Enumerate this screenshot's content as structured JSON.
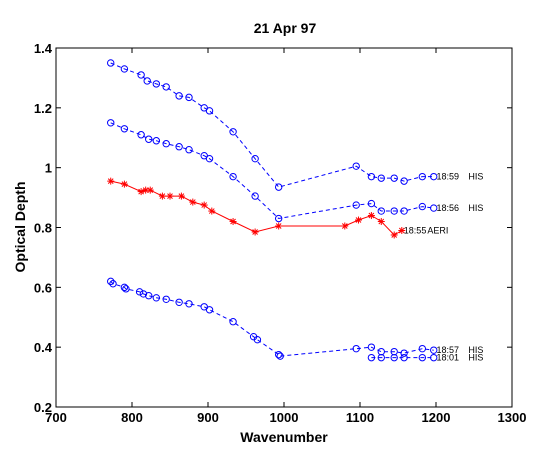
{
  "chart_data": {
    "type": "line",
    "title": "21 Apr 97",
    "xlabel": "Wavenumber",
    "ylabel": "Optical Depth",
    "xlim": [
      700,
      1300
    ],
    "ylim": [
      0.2,
      1.4
    ],
    "xticks": [
      700,
      800,
      900,
      1000,
      1100,
      1200,
      1300
    ],
    "yticks": [
      0.2,
      0.4,
      0.6,
      0.8,
      1.0,
      1.2,
      1.4
    ],
    "xtick_labels": [
      "700",
      "800",
      "900",
      "1000",
      "1100",
      "1200",
      "1300"
    ],
    "ytick_labels": [
      "0.2",
      "0.4",
      "0.6",
      "0.8",
      "1",
      "1.2",
      "1.4"
    ],
    "grid": false,
    "legend": "none",
    "series": [
      {
        "color": "#0000ff",
        "marker": "circle",
        "linestyle": "dashed",
        "x": [
          772,
          790,
          812,
          820,
          832,
          845,
          862,
          875,
          895,
          902,
          933,
          962,
          993,
          1095,
          1115,
          1128,
          1145,
          1158,
          1182,
          1197
        ],
        "y": [
          1.35,
          1.33,
          1.31,
          1.29,
          1.28,
          1.27,
          1.24,
          1.235,
          1.2,
          1.19,
          1.12,
          1.03,
          0.935,
          1.005,
          0.97,
          0.965,
          0.965,
          0.955,
          0.97,
          0.97
        ]
      },
      {
        "color": "#0000ff",
        "marker": "circle",
        "linestyle": "dashed",
        "x": [
          772,
          790,
          812,
          822,
          832,
          845,
          862,
          875,
          895,
          902,
          933,
          962,
          993,
          1095,
          1115,
          1128,
          1145,
          1158,
          1182,
          1197
        ],
        "y": [
          1.15,
          1.13,
          1.11,
          1.095,
          1.09,
          1.08,
          1.07,
          1.06,
          1.04,
          1.03,
          0.97,
          0.905,
          0.83,
          0.875,
          0.88,
          0.855,
          0.855,
          0.855,
          0.87,
          0.865
        ]
      },
      {
        "color": "#ff0000",
        "marker": "star",
        "linestyle": "solid",
        "x": [
          772,
          790,
          812,
          818,
          824,
          840,
          850,
          865,
          880,
          895,
          905,
          933,
          962,
          993,
          1080,
          1098,
          1115,
          1128,
          1145,
          1155
        ],
        "y": [
          0.955,
          0.945,
          0.92,
          0.925,
          0.925,
          0.905,
          0.905,
          0.905,
          0.885,
          0.875,
          0.855,
          0.82,
          0.785,
          0.805,
          0.805,
          0.825,
          0.84,
          0.82,
          0.775,
          0.79
        ]
      },
      {
        "color": "#0000ff",
        "marker": "circle",
        "linestyle": "dashed",
        "x": [
          772,
          775,
          790,
          792,
          810,
          815,
          822,
          832,
          845,
          862,
          875,
          895,
          902,
          933,
          960,
          965,
          993,
          995,
          1095,
          1115,
          1128,
          1145,
          1158,
          1182,
          1197
        ],
        "y": [
          0.62,
          0.612,
          0.6,
          0.595,
          0.585,
          0.578,
          0.572,
          0.565,
          0.56,
          0.55,
          0.545,
          0.535,
          0.525,
          0.485,
          0.435,
          0.425,
          0.375,
          0.37,
          0.395,
          0.4,
          0.385,
          0.385,
          0.38,
          0.395,
          0.39
        ]
      },
      {
        "color": "#0000ff",
        "marker": "circle",
        "linestyle": "dashed",
        "x": [
          1115,
          1128,
          1145,
          1158,
          1182,
          1197
        ],
        "y": [
          0.365,
          0.365,
          0.365,
          0.365,
          0.365,
          0.365
        ]
      }
    ],
    "annotations": [
      {
        "text": "18:59",
        "x": 1198,
        "y": 0.97
      },
      {
        "text": "HIS",
        "x": 1240,
        "y": 0.97
      },
      {
        "text": "18:56",
        "x": 1198,
        "y": 0.865
      },
      {
        "text": "HIS",
        "x": 1240,
        "y": 0.865
      },
      {
        "text": "18:55",
        "x": 1155,
        "y": 0.79
      },
      {
        "text": "AERI",
        "x": 1186,
        "y": 0.79
      },
      {
        "text": "18:57",
        "x": 1198,
        "y": 0.39
      },
      {
        "text": "HIS",
        "x": 1240,
        "y": 0.39
      },
      {
        "text": "18:01",
        "x": 1198,
        "y": 0.365
      },
      {
        "text": "HIS",
        "x": 1240,
        "y": 0.365
      }
    ]
  }
}
